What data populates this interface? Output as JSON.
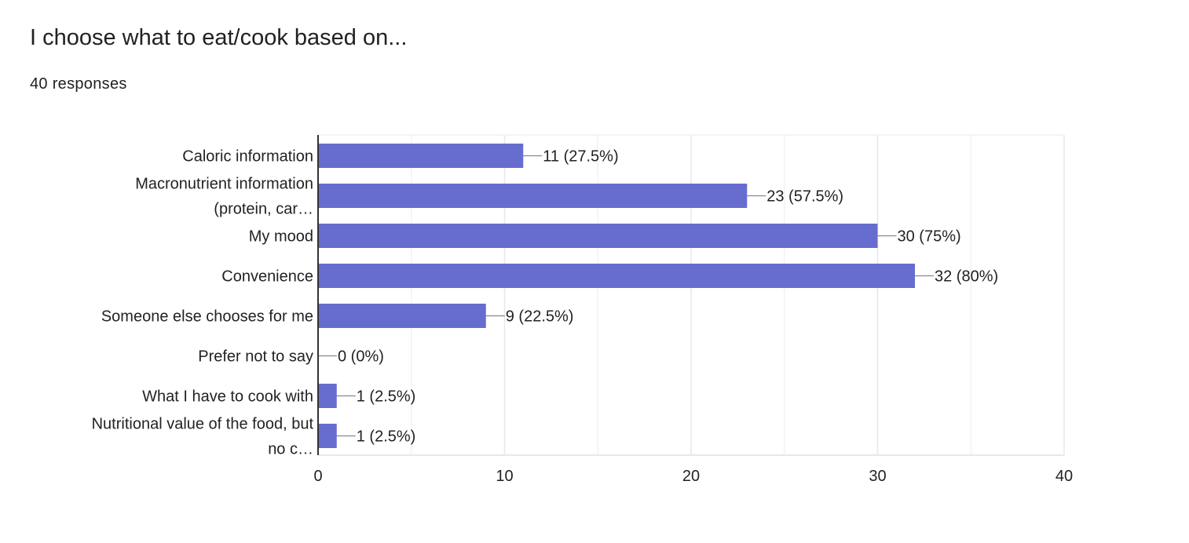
{
  "chart_data": {
    "type": "bar",
    "orientation": "horizontal",
    "title": "I choose what to eat/cook based on...",
    "subtitle": "40 responses",
    "categories": [
      [
        "Caloric information"
      ],
      [
        "Macronutrient information",
        "(protein, car…"
      ],
      [
        "My mood"
      ],
      [
        "Convenience"
      ],
      [
        "Someone else chooses for me"
      ],
      [
        "Prefer not to say"
      ],
      [
        "What I have to cook with"
      ],
      [
        "Nutritional value of the food, but",
        "no c…"
      ]
    ],
    "values": [
      11,
      23,
      30,
      32,
      9,
      0,
      1,
      1
    ],
    "data_labels": [
      "11 (27.5%)",
      "23 (57.5%)",
      "30 (75%)",
      "32 (80%)",
      "9 (22.5%)",
      "0 (0%)",
      "1 (2.5%)",
      "1 (2.5%)"
    ],
    "xlim": [
      0,
      40
    ],
    "x_ticks": [
      "0",
      "10",
      "20",
      "30",
      "40"
    ],
    "x_tick_values": [
      0,
      10,
      20,
      30,
      40
    ],
    "grid": true,
    "bar_color": "#676ccf",
    "xlabel": "",
    "ylabel": ""
  }
}
